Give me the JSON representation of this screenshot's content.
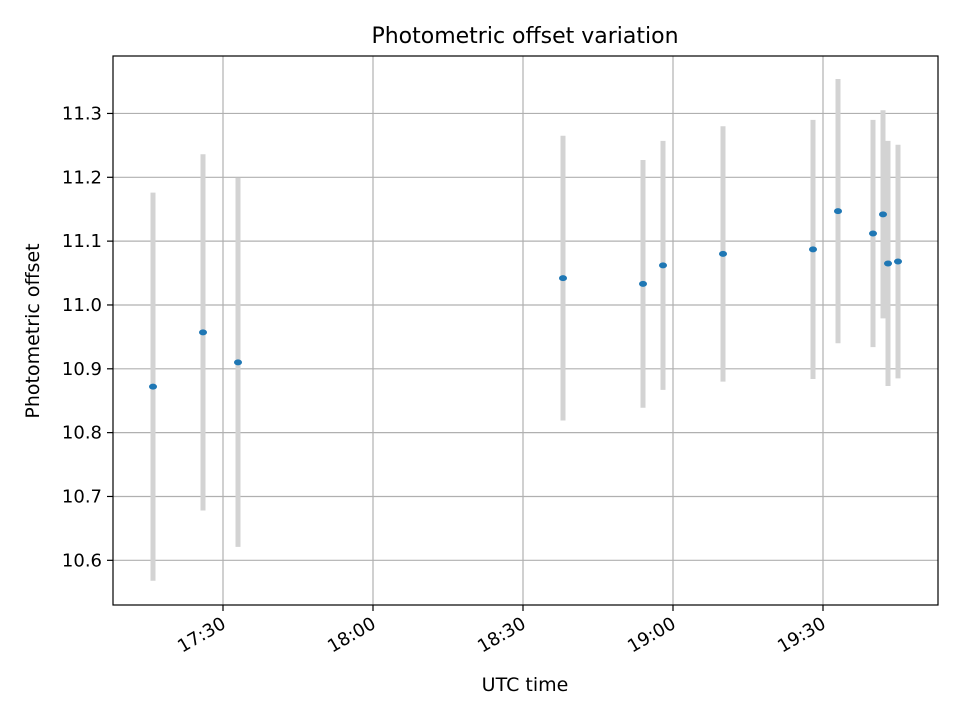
{
  "chart_data": {
    "type": "scatter",
    "title": "Photometric offset variation",
    "xlabel": "UTC time",
    "ylabel": "Photometric offset",
    "x_tick_labels": [
      "17:30",
      "18:00",
      "18:30",
      "19:00",
      "19:30"
    ],
    "y_tick_labels": [
      "10.6",
      "10.7",
      "10.8",
      "10.9",
      "11.0",
      "11.1",
      "11.2",
      "11.3"
    ],
    "grid": true,
    "xlim": [
      "17:08",
      "19:53"
    ],
    "ylim": [
      10.53,
      11.39
    ],
    "series": [
      {
        "marker_color": "#1f77b4",
        "errorbar_color": "#d3d3d3",
        "points": [
          {
            "x": "17:16",
            "y": 10.872,
            "err": 0.304
          },
          {
            "x": "17:26",
            "y": 10.957,
            "err": 0.279
          },
          {
            "x": "17:33",
            "y": 10.91,
            "err": 0.289
          },
          {
            "x": "18:38",
            "y": 11.042,
            "err": 0.223
          },
          {
            "x": "18:54",
            "y": 11.033,
            "err": 0.194
          },
          {
            "x": "18:58",
            "y": 11.062,
            "err": 0.195
          },
          {
            "x": "19:10",
            "y": 11.08,
            "err": 0.2
          },
          {
            "x": "19:28",
            "y": 11.087,
            "err": 0.203
          },
          {
            "x": "19:33",
            "y": 11.147,
            "err": 0.207
          },
          {
            "x": "19:40",
            "y": 11.112,
            "err": 0.178
          },
          {
            "x": "19:42",
            "y": 11.142,
            "err": 0.163
          },
          {
            "x": "19:43",
            "y": 11.065,
            "err": 0.192
          },
          {
            "x": "19:45",
            "y": 11.068,
            "err": 0.183
          }
        ]
      }
    ]
  }
}
